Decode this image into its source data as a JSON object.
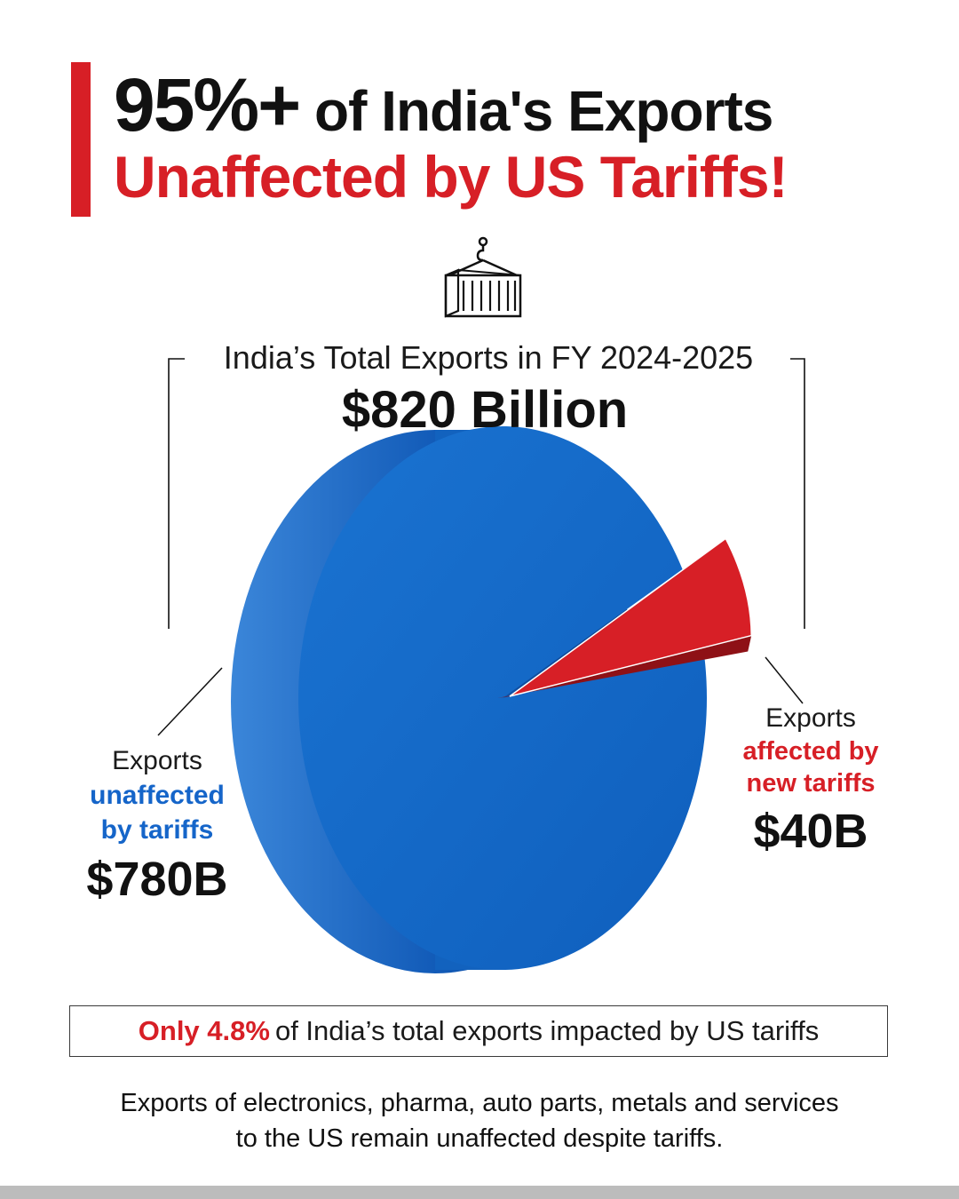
{
  "header": {
    "headline_big": "95%+",
    "headline_rest": "of India's Exports",
    "headline_line2": "Unaffected by US Tariffs!",
    "icon": "shipping-container-icon"
  },
  "colors": {
    "accent_red": "#d71f26",
    "pie_blue": "#1565c9",
    "text_dark": "#111111"
  },
  "chart_data": {
    "type": "pie",
    "title": "India’s Total Exports in FY 2024-2025",
    "total_label": "$820 Billion",
    "total": 820,
    "unit": "B USD",
    "slices": [
      {
        "key": "unaffected",
        "line1": "Exports",
        "line2": "unaffected",
        "line3": "by tariffs",
        "value": 780,
        "value_label": "$780B",
        "color": "#1565c9"
      },
      {
        "key": "affected",
        "line1": "Exports",
        "line2": "affected by",
        "line3": "new tariffs",
        "value": 40,
        "value_label": "$40B",
        "color": "#d71f26"
      }
    ]
  },
  "callout": {
    "highlight": "Only 4.8%",
    "text": "of India’s total exports impacted by US tariffs"
  },
  "footnote": {
    "line1": "Exports of electronics, pharma, auto parts, metals and services",
    "line2": "to the US remain unaffected despite tariffs."
  }
}
